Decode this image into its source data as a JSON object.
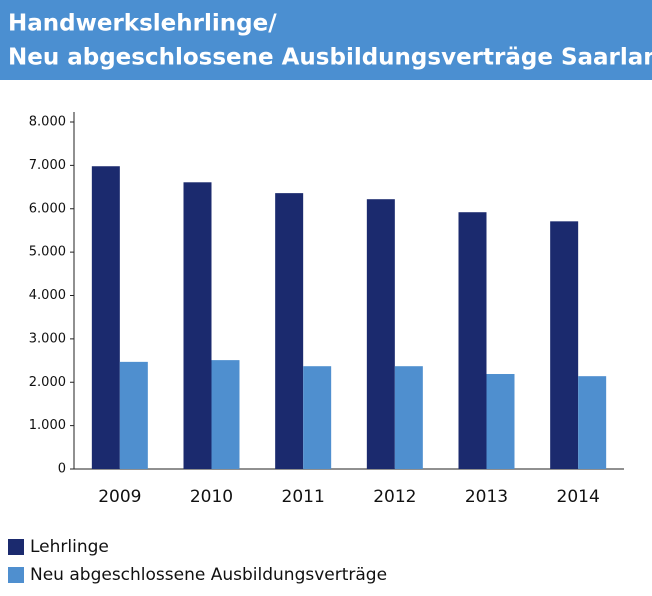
{
  "chart_data": {
    "type": "bar",
    "title": [
      "Handwerkslehrlinge/",
      "Neu abgeschlossene Ausbildungsverträge Saarland"
    ],
    "categories": [
      "2009",
      "2010",
      "2011",
      "2012",
      "2013",
      "2014"
    ],
    "series": [
      {
        "name": "Lehrlinge",
        "color": "#1b2a6e",
        "values": [
          6980,
          6610,
          6360,
          6220,
          5920,
          5710
        ]
      },
      {
        "name": "Neu abgeschlossene Ausbildungsverträge",
        "color": "#4f8fcf",
        "values": [
          2470,
          2510,
          2370,
          2370,
          2190,
          2140
        ]
      }
    ],
    "ylim": [
      0,
      8000
    ],
    "yticks": [
      0,
      {
        "value": 1000,
        "label": "1.000"
      },
      {
        "value": 2000,
        "label": "2.000"
      },
      {
        "value": 3000,
        "label": "3.000"
      },
      {
        "value": 4000,
        "label": "4.000"
      },
      {
        "value": 5000,
        "label": "5.000"
      },
      {
        "value": 6000,
        "label": "6.000"
      },
      {
        "value": 7000,
        "label": "7.000"
      },
      {
        "value": 8000,
        "label": "8.000"
      }
    ],
    "grid": false,
    "legend": "bottom"
  }
}
